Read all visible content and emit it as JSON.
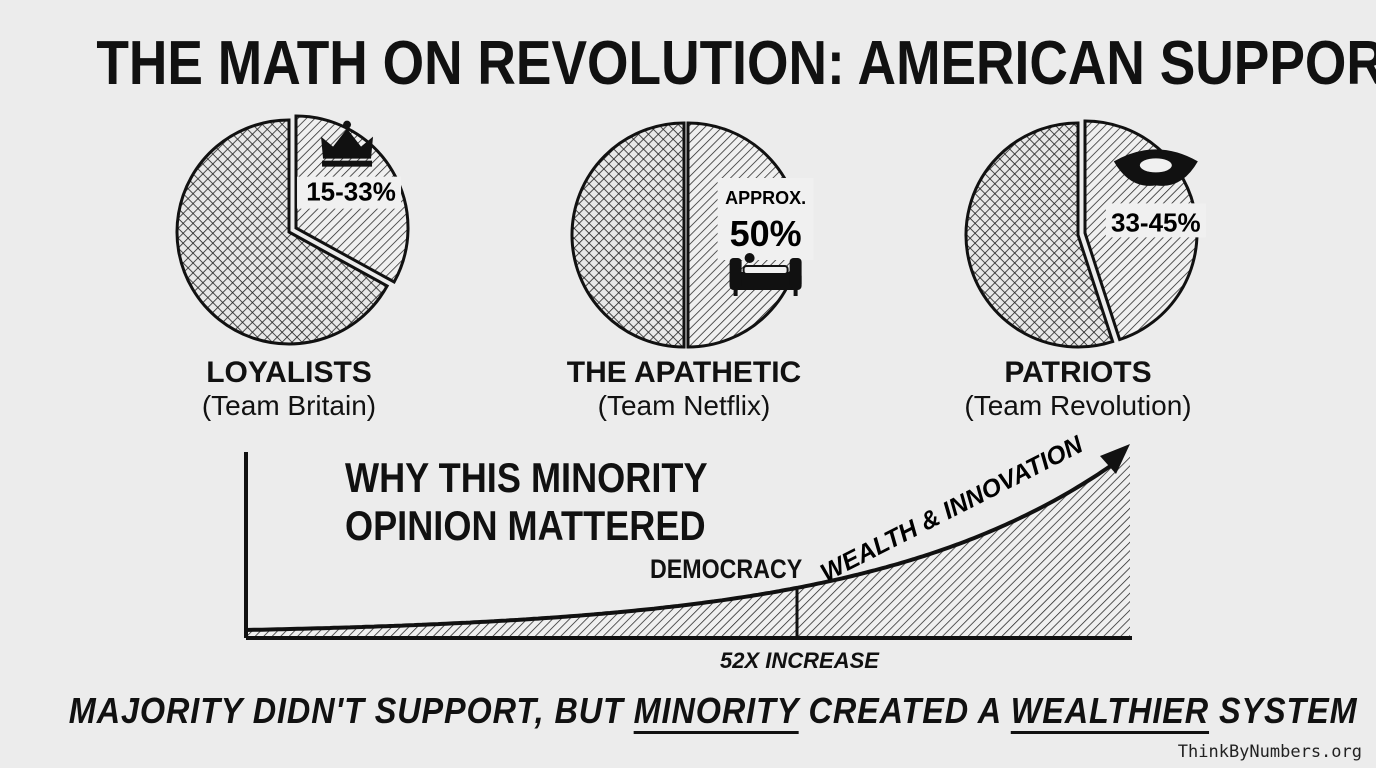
{
  "title": "THE MATH ON REVOLUTION: AMERICAN SUPPORT",
  "pies": [
    {
      "label": "LOYALISTS",
      "sublabel": "(Team Britain)",
      "value_text": "15-33%",
      "value_prefix": "",
      "highlight_share": 0.33,
      "icon": "crown-icon"
    },
    {
      "label": "THE APATHETIC",
      "sublabel": "(Team Netflix)",
      "value_text": "50%",
      "value_prefix": "APPROX.",
      "highlight_share": 0.5,
      "icon": "couch-icon"
    },
    {
      "label": "PATRIOTS",
      "sublabel": "(Team Revolution)",
      "value_text": "33-45%",
      "value_prefix": "",
      "highlight_share": 0.45,
      "icon": "tricorn-hat-icon"
    }
  ],
  "chart_data": [
    {
      "type": "pie",
      "series": [
        {
          "name": "LOYALISTS",
          "value_text": "15-33%",
          "range": [
            15,
            33
          ]
        },
        {
          "name": "THE APATHETIC",
          "value_text": "APPROX. 50%",
          "value": 50
        },
        {
          "name": "PATRIOTS",
          "value_text": "33-45%",
          "range": [
            33,
            45
          ]
        }
      ]
    },
    {
      "type": "area",
      "title": "WHY THIS MINORITY OPINION MATTERED",
      "annotations": [
        "DEMOCRACY",
        "WEALTH & INNOVATION",
        "52X INCREASE"
      ],
      "note": "exponential growth curve, split into a low early segment and a steep later segment"
    }
  ],
  "growth": {
    "title": "WHY THIS MINORITY OPINION MATTERED",
    "democracy_label": "DEMOCRACY",
    "curve_label": "WEALTH & INNOVATION",
    "increase_label": "52X INCREASE"
  },
  "footer": {
    "part1": "MAJORITY DIDN'T SUPPORT, BUT ",
    "emph1": "MINORITY",
    "part2": " CREATED A ",
    "emph2": "WEALTHIER",
    "part3": " SYSTEM"
  },
  "watermark": "ThinkByNumbers.org"
}
